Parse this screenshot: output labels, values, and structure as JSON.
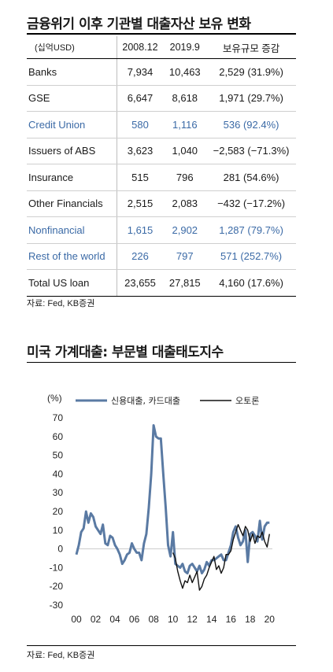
{
  "table_section": {
    "title": "금융위기 이후 기관별 대출자산 보유 변화",
    "unit_label": "(십억USD)",
    "columns": [
      "2008.12",
      "2019.9",
      "보유규모 증감"
    ],
    "rows": [
      {
        "label": "Banks",
        "v2008": "7,934",
        "v2019": "10,463",
        "change": "2,529 (31.9%)",
        "highlight": false
      },
      {
        "label": "GSE",
        "v2008": "6,647",
        "v2019": "8,618",
        "change": "1,971 (29.7%)",
        "highlight": false
      },
      {
        "label": "Credit Union",
        "v2008": "580",
        "v2019": "1,116",
        "change": "536 (92.4%)",
        "highlight": true
      },
      {
        "label": "Issuers of ABS",
        "v2008": "3,623",
        "v2019": "1,040",
        "change": "−2,583 (−71.3%)",
        "highlight": false
      },
      {
        "label": "Insurance",
        "v2008": "515",
        "v2019": "796",
        "change": "281 (54.6%)",
        "highlight": false
      },
      {
        "label": "Other Financials",
        "v2008": "2,515",
        "v2019": "2,083",
        "change": "−432 (−17.2%)",
        "highlight": false
      },
      {
        "label": "Nonfinancial",
        "v2008": "1,615",
        "v2019": "2,902",
        "change": "1,287 (79.7%)",
        "highlight": true
      },
      {
        "label": "Rest of the world",
        "v2008": "226",
        "v2019": "797",
        "change": "571 (252.7%)",
        "highlight": true
      }
    ],
    "total": {
      "label": "Total  US loan",
      "v2008": "23,655",
      "v2019": "27,815",
      "change": "4,160 (17.6%)"
    },
    "source": "자료: Fed, KB증권",
    "highlight_color": "#3b6aa6"
  },
  "chart_section": {
    "title": "미국 가계대출: 부문별 대출태도지수",
    "source": "자료: Fed, KB증권"
  },
  "chart_data": {
    "type": "line",
    "title": "미국 가계대출: 부문별 대출태도지수",
    "ylabel": "(%)",
    "xlabel": "",
    "ylim": [
      -30,
      70
    ],
    "xlim": [
      2000,
      2020.3
    ],
    "yticks": [
      70,
      60,
      50,
      40,
      30,
      20,
      10,
      0,
      -10,
      -20,
      -30
    ],
    "xticks": [
      "00",
      "02",
      "04",
      "06",
      "08",
      "10",
      "12",
      "14",
      "16",
      "18",
      "20"
    ],
    "legend_position": "top",
    "series": [
      {
        "name": "신용대출, 카드대출",
        "color": "#5a7aa3",
        "x": [
          2000.0,
          2000.25,
          2000.5,
          2000.75,
          2001.0,
          2001.25,
          2001.5,
          2001.75,
          2002.0,
          2002.25,
          2002.5,
          2002.75,
          2003.0,
          2003.25,
          2003.5,
          2003.75,
          2004.0,
          2004.25,
          2004.5,
          2004.75,
          2005.0,
          2005.25,
          2005.5,
          2005.75,
          2006.0,
          2006.25,
          2006.5,
          2006.75,
          2007.0,
          2007.25,
          2007.5,
          2007.75,
          2008.0,
          2008.25,
          2008.5,
          2008.75,
          2009.0,
          2009.25,
          2009.5,
          2009.75,
          2010.0,
          2010.25,
          2010.5,
          2010.75,
          2011.0,
          2011.25,
          2011.5,
          2011.75,
          2012.0,
          2012.25,
          2012.5,
          2012.75,
          2013.0,
          2013.25,
          2013.5,
          2013.75,
          2014.0,
          2014.25,
          2014.5,
          2014.75,
          2015.0,
          2015.25,
          2015.5,
          2015.75,
          2016.0,
          2016.25,
          2016.5,
          2016.75,
          2017.0,
          2017.25,
          2017.5,
          2017.75,
          2018.0,
          2018.25,
          2018.5,
          2018.75,
          2019.0,
          2019.25,
          2019.5,
          2019.75,
          2020.0
        ],
        "y": [
          -3,
          2,
          9,
          11,
          20,
          14,
          19,
          17,
          12,
          10,
          8,
          13,
          3,
          2,
          7,
          6,
          2,
          0,
          -3,
          -8,
          -6,
          -3,
          -2,
          3,
          0,
          -2,
          -2,
          -6,
          3,
          8,
          22,
          40,
          66,
          60,
          59,
          59,
          40,
          22,
          2,
          -4,
          9,
          -8,
          -9,
          -10,
          -8,
          -12,
          -13,
          -9,
          -8,
          -10,
          -12,
          -9,
          -13,
          -11,
          -7,
          -9,
          -6,
          -6,
          -5,
          -4,
          -3,
          -6,
          -6,
          -2,
          2,
          9,
          12,
          6,
          2,
          4,
          10,
          -7,
          8,
          9,
          7,
          4,
          15,
          5,
          12,
          14,
          14
        ]
      },
      {
        "name": "오토론",
        "color": "#111111",
        "x": [
          2010.0,
          2010.25,
          2010.5,
          2010.75,
          2011.0,
          2011.25,
          2011.5,
          2011.75,
          2012.0,
          2012.25,
          2012.5,
          2012.75,
          2013.0,
          2013.25,
          2013.5,
          2013.75,
          2014.0,
          2014.25,
          2014.5,
          2014.75,
          2015.0,
          2015.25,
          2015.5,
          2015.75,
          2016.0,
          2016.25,
          2016.5,
          2016.75,
          2017.0,
          2017.25,
          2017.5,
          2017.75,
          2018.0,
          2018.25,
          2018.5,
          2018.75,
          2019.0,
          2019.25,
          2019.5,
          2019.75,
          2020.0
        ],
        "y": [
          -2,
          -5,
          -12,
          -17,
          -21,
          -17,
          -18,
          -14,
          -18,
          -15,
          -12,
          -22,
          -20,
          -16,
          -14,
          -10,
          -7,
          -4,
          -11,
          -9,
          -13,
          -10,
          -3,
          -3,
          -1,
          5,
          9,
          13,
          10,
          7,
          12,
          10,
          4,
          8,
          3,
          7,
          6,
          9,
          4,
          1,
          8
        ]
      }
    ]
  }
}
